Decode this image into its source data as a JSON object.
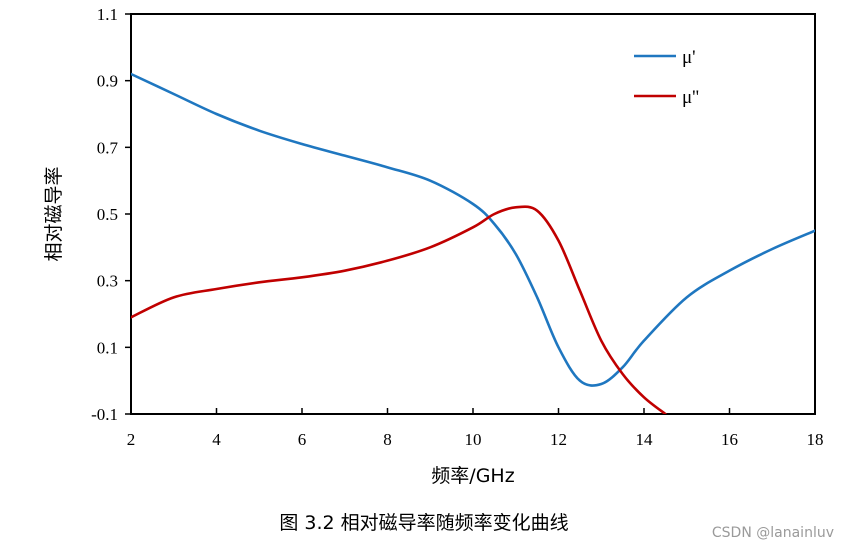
{
  "caption": "图 3.2  相对磁导率随频率变化曲线",
  "watermark": "CSDN @lanainluv",
  "chart_data": {
    "type": "line",
    "title": "",
    "xlabel": "频率/GHz",
    "ylabel": "相对磁导率",
    "xlim": [
      2,
      18
    ],
    "ylim": [
      -0.1,
      1.1
    ],
    "xticks": [
      "2",
      "4",
      "6",
      "8",
      "10",
      "12",
      "14",
      "16",
      "18"
    ],
    "yticks": [
      "-0.1",
      "0.1",
      "0.3",
      "0.5",
      "0.7",
      "0.9",
      "1.1"
    ],
    "grid": false,
    "legend": "top-right",
    "series": [
      {
        "name": "μ'",
        "color": "#1f77c0",
        "x": [
          2,
          3,
          4,
          5,
          6,
          7,
          8,
          9,
          10,
          10.5,
          11,
          11.5,
          12,
          12.5,
          13,
          13.5,
          14,
          15,
          16,
          17,
          18
        ],
        "y": [
          0.92,
          0.86,
          0.8,
          0.75,
          0.71,
          0.675,
          0.64,
          0.6,
          0.53,
          0.47,
          0.38,
          0.25,
          0.1,
          0.0,
          -0.01,
          0.04,
          0.12,
          0.25,
          0.33,
          0.395,
          0.45
        ]
      },
      {
        "name": "μ''",
        "color": "#c00000",
        "x": [
          2,
          3,
          4,
          5,
          6,
          7,
          8,
          9,
          10,
          10.5,
          11,
          11.5,
          12,
          12.5,
          13,
          13.5,
          14,
          14.5
        ],
        "y": [
          0.19,
          0.25,
          0.275,
          0.295,
          0.31,
          0.33,
          0.36,
          0.4,
          0.46,
          0.5,
          0.52,
          0.51,
          0.42,
          0.27,
          0.12,
          0.02,
          -0.05,
          -0.1
        ]
      }
    ]
  }
}
